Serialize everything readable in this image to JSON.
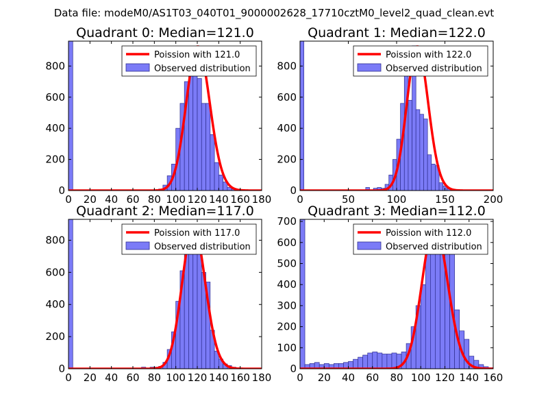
{
  "figure_title": "Data file: modeM0/AS1T03_040T01_9000002628_17710cztM0_level2_quad_clean.evt",
  "colors": {
    "bar_fill": "#7b7bf7",
    "bar_edge": "#2e2e8f",
    "curve": "#ff0000",
    "axis": "#000000"
  },
  "chart_data": [
    {
      "type": "bar",
      "title": "Quadrant 0: Median=121.0",
      "xlim": [
        0,
        180
      ],
      "ylim": [
        0,
        960
      ],
      "xticks": [
        "0",
        "20",
        "40",
        "60",
        "80",
        "100",
        "120",
        "140",
        "160",
        "180"
      ],
      "yticks": [
        "0",
        "200",
        "400",
        "600",
        "800"
      ],
      "legend": [
        "Poission with 121.0",
        "Observed distribution"
      ],
      "bin_width": 4,
      "bins_x": [
        0,
        68,
        76,
        80,
        84,
        88,
        92,
        96,
        100,
        104,
        108,
        112,
        116,
        120,
        124,
        128,
        132,
        136,
        140,
        144,
        148,
        152,
        156,
        160
      ],
      "bins_y": [
        960,
        5,
        5,
        5,
        10,
        35,
        95,
        170,
        400,
        560,
        700,
        780,
        920,
        720,
        560,
        560,
        360,
        180,
        100,
        55,
        20,
        10,
        5,
        5
      ],
      "poisson_mean": 121.0,
      "poisson_scale": 925
    },
    {
      "type": "bar",
      "title": "Quadrant 1: Median=122.0",
      "xlim": [
        0,
        200
      ],
      "ylim": [
        0,
        960
      ],
      "xticks": [
        "0",
        "50",
        "100",
        "150",
        "200"
      ],
      "yticks": [
        "0",
        "200",
        "400",
        "600",
        "800"
      ],
      "legend": [
        "Poission with 122.0",
        "Observed distribution"
      ],
      "bin_width": 4,
      "bins_x": [
        0,
        68,
        76,
        80,
        84,
        88,
        92,
        96,
        100,
        104,
        108,
        112,
        116,
        120,
        124,
        128,
        132,
        136,
        140,
        144,
        148,
        152,
        156,
        160
      ],
      "bins_y": [
        960,
        20,
        15,
        20,
        15,
        40,
        100,
        200,
        330,
        560,
        800,
        580,
        930,
        520,
        490,
        460,
        230,
        170,
        160,
        50,
        30,
        10,
        5,
        5
      ],
      "poisson_mean": 122.0,
      "poisson_scale": 925
    },
    {
      "type": "bar",
      "title": "Quadrant 2: Median=117.0",
      "xlim": [
        0,
        180
      ],
      "ylim": [
        0,
        930
      ],
      "xticks": [
        "0",
        "20",
        "40",
        "60",
        "80",
        "100",
        "120",
        "140",
        "160",
        "180"
      ],
      "yticks": [
        "0",
        "200",
        "400",
        "600",
        "800"
      ],
      "legend": [
        "Poission with 117.0",
        "Observed distribution"
      ],
      "bin_width": 4,
      "bins_x": [
        0,
        68,
        76,
        80,
        84,
        88,
        92,
        96,
        100,
        104,
        108,
        112,
        116,
        120,
        124,
        128,
        132,
        136,
        140,
        144,
        148,
        152,
        156,
        160
      ],
      "bins_y": [
        930,
        10,
        10,
        10,
        15,
        40,
        120,
        230,
        420,
        610,
        720,
        800,
        860,
        720,
        600,
        540,
        240,
        110,
        60,
        30,
        20,
        10,
        5,
        5
      ],
      "poisson_mean": 117.0,
      "poisson_scale": 880
    },
    {
      "type": "bar",
      "title": "Quadrant 3: Median=112.0",
      "xlim": [
        0,
        160
      ],
      "ylim": [
        0,
        710
      ],
      "xticks": [
        "0",
        "20",
        "40",
        "60",
        "80",
        "100",
        "120",
        "140",
        "160"
      ],
      "yticks": [
        "0",
        "100",
        "200",
        "300",
        "400",
        "500",
        "600",
        "700"
      ],
      "legend": [
        "Poission with 112.0",
        "Observed distribution"
      ],
      "bin_width": 4,
      "bins_x": [
        0,
        4,
        8,
        12,
        16,
        20,
        24,
        28,
        32,
        36,
        40,
        44,
        48,
        52,
        56,
        60,
        64,
        68,
        72,
        76,
        80,
        84,
        88,
        92,
        96,
        100,
        104,
        108,
        112,
        116,
        120,
        124,
        128,
        132,
        136,
        140,
        144,
        148,
        152,
        156
      ],
      "bins_y": [
        710,
        20,
        25,
        30,
        20,
        25,
        20,
        25,
        25,
        30,
        35,
        45,
        55,
        65,
        75,
        80,
        75,
        70,
        70,
        75,
        70,
        80,
        120,
        200,
        300,
        400,
        580,
        670,
        680,
        650,
        640,
        640,
        280,
        180,
        140,
        60,
        40,
        20,
        10,
        5
      ],
      "poisson_mean": 112.0,
      "poisson_scale": 680
    }
  ]
}
